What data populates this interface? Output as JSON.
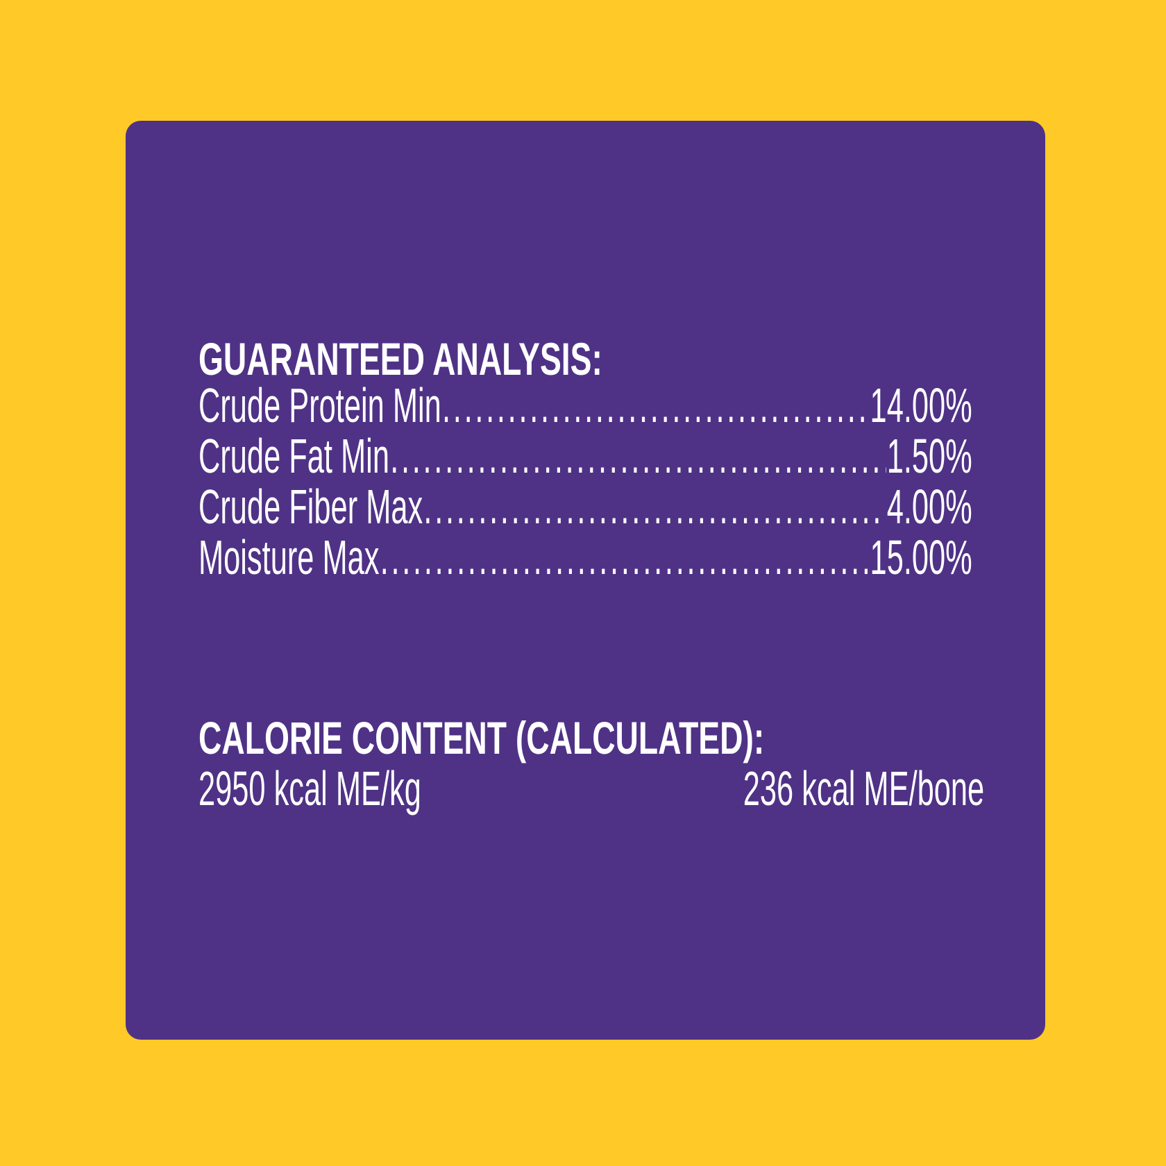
{
  "colors": {
    "background": "#FFCA28",
    "panel": "#4F3286",
    "text": "#FFFFFF"
  },
  "guaranteed_analysis": {
    "heading": "GUARANTEED ANALYSIS:",
    "rows": [
      {
        "label": "Crude Protein Min",
        "value": "14.00%"
      },
      {
        "label": "Crude Fat Min",
        "value": "1.50%"
      },
      {
        "label": "Crude Fiber Max",
        "value": "4.00%"
      },
      {
        "label": "Moisture Max",
        "value": "15.00%"
      }
    ]
  },
  "calorie_content": {
    "heading": "CALORIE CONTENT (CALCULATED):",
    "per_kg": "2950 kcal ME/kg",
    "per_bone": "236 kcal ME/bone"
  }
}
